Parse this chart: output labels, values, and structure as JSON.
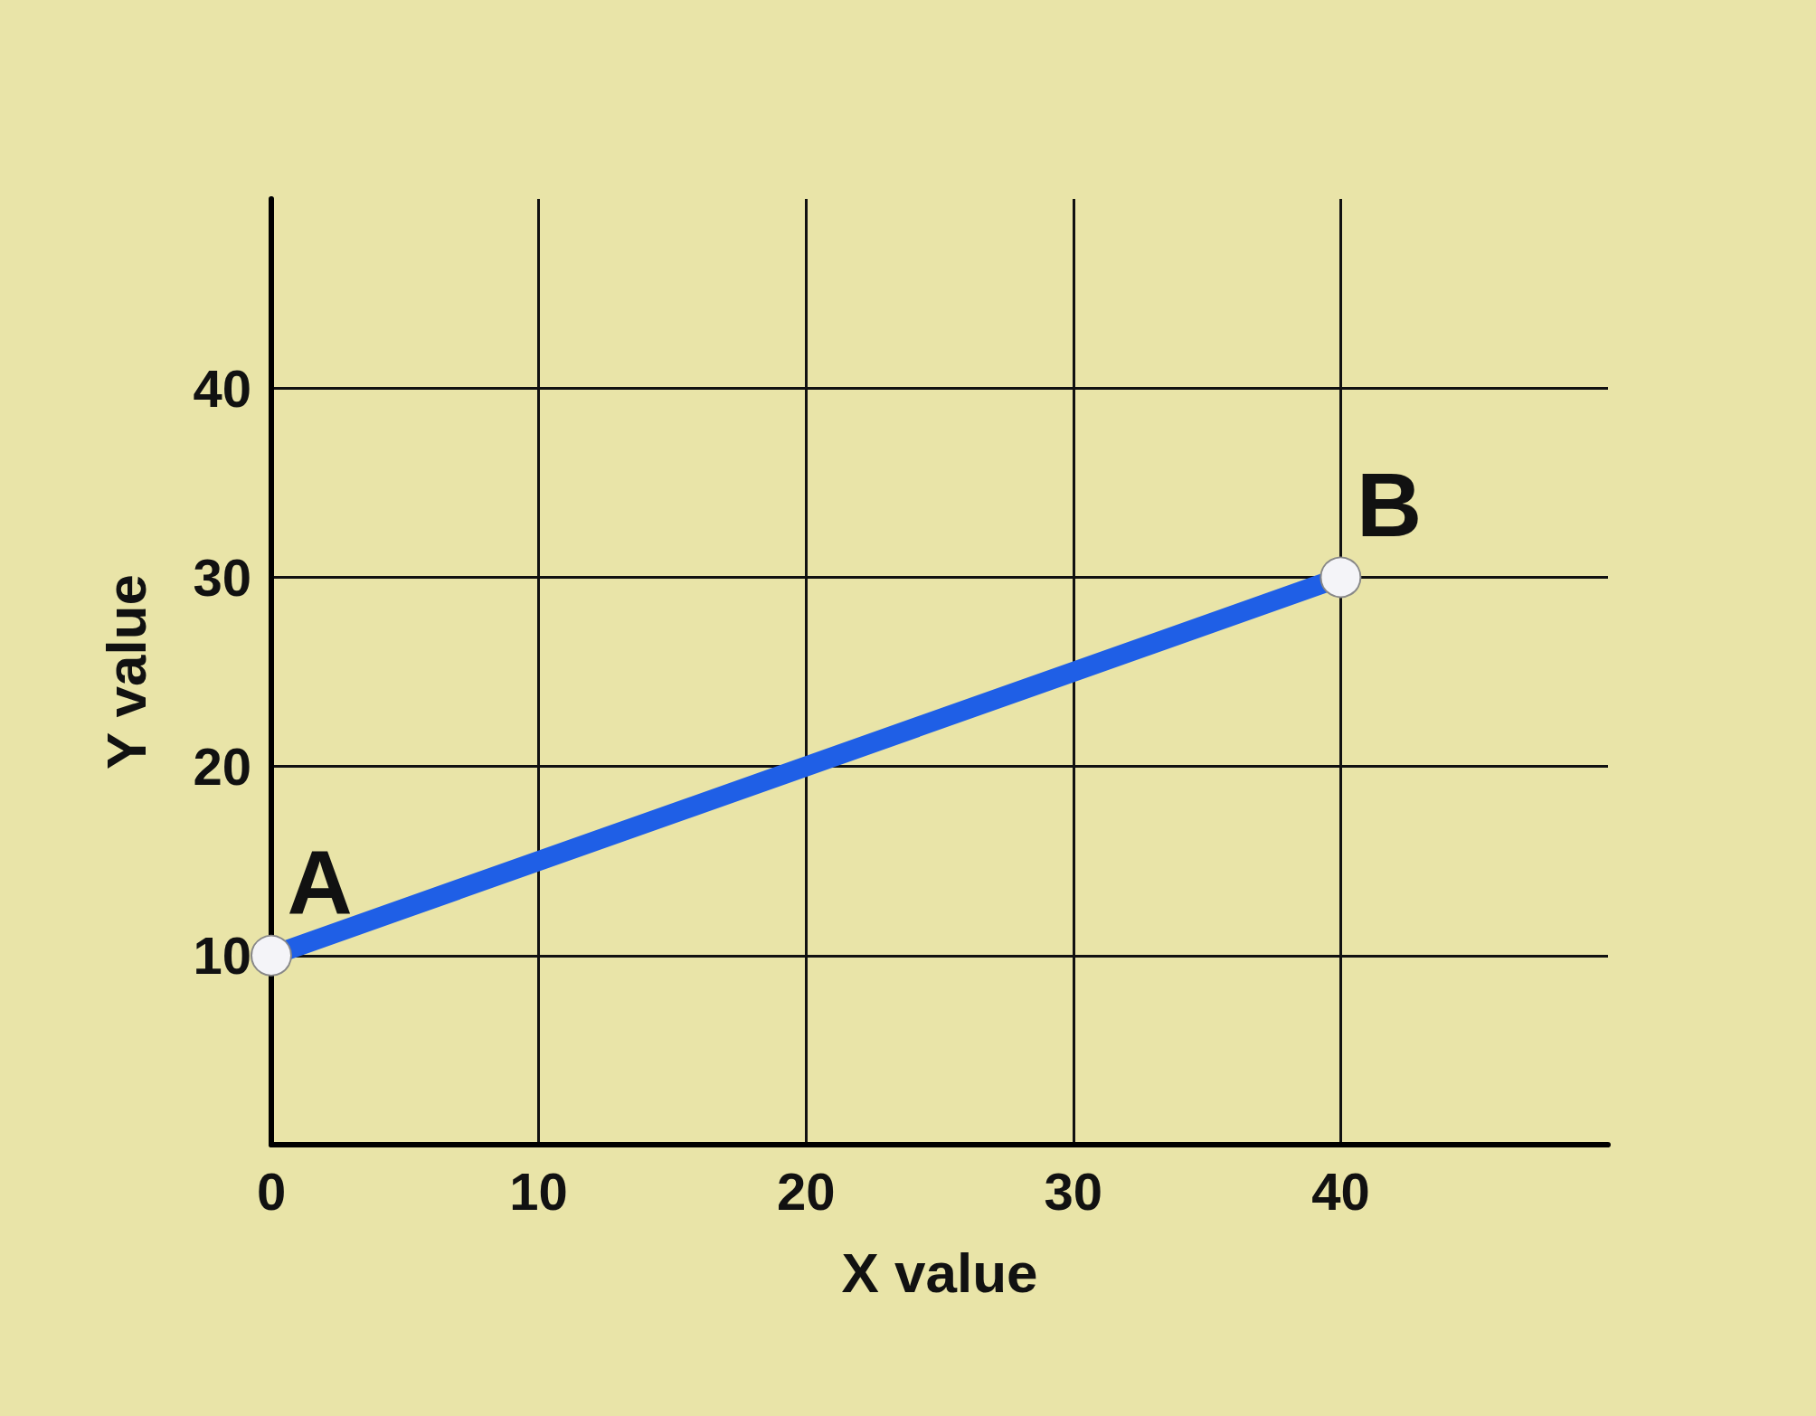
{
  "chart_data": {
    "type": "line",
    "xlabel": "X value",
    "ylabel": "Y value",
    "x": [
      0,
      40
    ],
    "series": [
      {
        "color": "#1f5fe6",
        "values": [
          10,
          30
        ]
      }
    ],
    "marker": "circle",
    "line_style": "solid",
    "grid": true,
    "xlim": [
      0,
      50
    ],
    "xticks": [
      0,
      10,
      20,
      30,
      40
    ],
    "ylim": [
      0,
      50
    ],
    "yticks": [
      10,
      20,
      30,
      40
    ],
    "annotations": [
      {
        "text": "A",
        "x": 0,
        "y": 10
      },
      {
        "text": "B",
        "x": 40,
        "y": 30
      }
    ]
  }
}
